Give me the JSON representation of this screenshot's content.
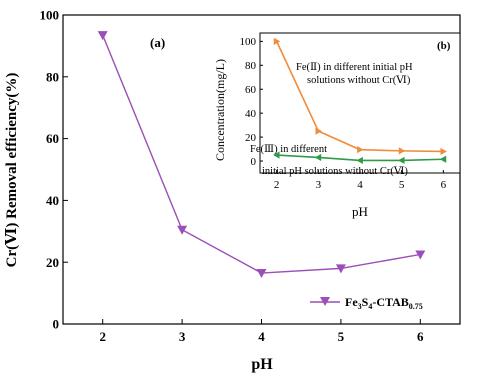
{
  "chart_data": [
    {
      "type": "line",
      "panel_label": "(a)",
      "xlabel": "pH",
      "ylabel": "Cr(Ⅵ) Removal efficiency(%)",
      "xlim": [
        1.5,
        6.5
      ],
      "ylim": [
        0,
        100
      ],
      "x_ticks": [
        "2",
        "3",
        "4",
        "5",
        "6"
      ],
      "y_ticks": [
        "0",
        "20",
        "40",
        "60",
        "80",
        "100"
      ],
      "legend_position": "bottom-right",
      "series": [
        {
          "name": "Fe3S4-CTAB0.75",
          "name_parts": {
            "a": "Fe",
            "b": "3",
            "c": "S",
            "d": "4",
            "e": "-CTAB",
            "f": "0.75"
          },
          "color": "#9b4fb8",
          "marker": "triangle-down",
          "x": [
            2,
            3,
            4,
            5,
            6
          ],
          "y": [
            93.5,
            30.5,
            16.5,
            18.0,
            22.5
          ]
        }
      ]
    },
    {
      "type": "line",
      "panel_label": "(b)",
      "xlabel": "pH",
      "ylabel": "Concentration(mg/L)",
      "xlim": [
        1.6,
        6.4
      ],
      "ylim": [
        -10,
        107
      ],
      "x_ticks": [
        "2",
        "3",
        "4",
        "5",
        "6"
      ],
      "y_ticks": [
        "0",
        "20",
        "40",
        "60",
        "80",
        "100"
      ],
      "series": [
        {
          "name": "Fe(Ⅱ) in different initial pH solutions without Cr(Ⅵ)",
          "color": "#f08c3c",
          "marker": "triangle-right",
          "x": [
            2,
            3,
            4,
            5,
            6
          ],
          "y": [
            100,
            25,
            9.5,
            8.5,
            8.0
          ]
        },
        {
          "name": "Fe(Ⅲ) in different initial pH solutions without Cr(Ⅵ)",
          "color": "#2e9b48",
          "marker": "triangle-left",
          "x": [
            2,
            3,
            4,
            5,
            6
          ],
          "y": [
            5,
            3,
            0.5,
            0.5,
            1.5
          ]
        }
      ],
      "annotations": [
        {
          "lines": [
            "Fe(Ⅱ) in different initial pH",
            "solutions without Cr(Ⅵ)"
          ]
        },
        {
          "lines": [
            "Fe(Ⅲ) in different",
            "initial pH solutions without Cr(Ⅵ)"
          ]
        }
      ]
    }
  ]
}
